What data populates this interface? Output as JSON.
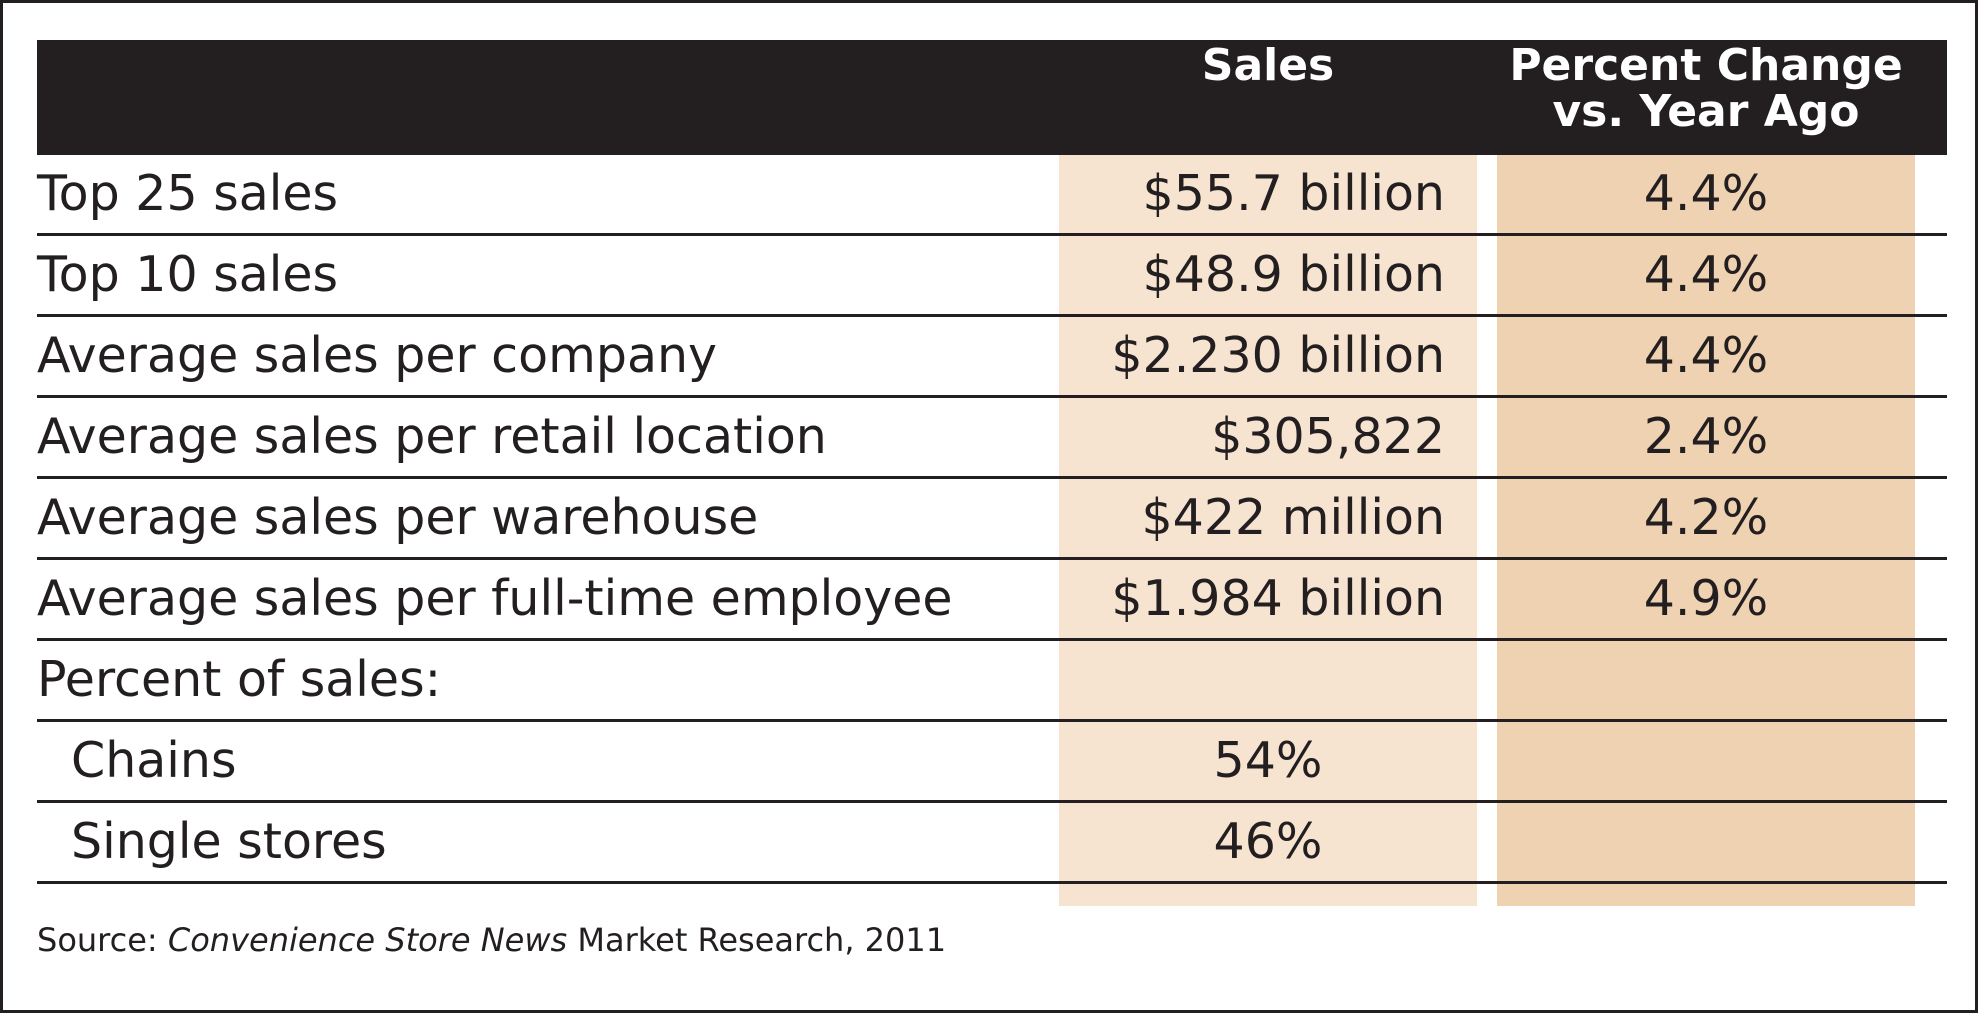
{
  "colors": {
    "header_bg": "#231f20",
    "header_text": "#ffffff",
    "sales_band": "#f6e4d1",
    "pct_band": "#efd2b1",
    "rule": "#231f20"
  },
  "header": {
    "sales": "Sales",
    "pct_change": "Percent Change\nvs. Year Ago"
  },
  "rows": [
    {
      "label": "Top 25 sales",
      "sales": "$55.7 billion",
      "pct": "4.4%"
    },
    {
      "label": "Top 10 sales",
      "sales": "$48.9 billion",
      "pct": "4.4%"
    },
    {
      "label": "Average sales per company",
      "sales": "$2.230 billion",
      "pct": "4.4%"
    },
    {
      "label": "Average sales per retail location",
      "sales": "$305,822",
      "pct": "2.4%"
    },
    {
      "label": "Average sales per warehouse",
      "sales": "$422 million",
      "pct": "4.2%"
    },
    {
      "label": "Average sales per full-time employee",
      "sales": "$1.984 billion",
      "pct": "4.9%"
    },
    {
      "label": "Percent of sales:",
      "sales": "",
      "pct": ""
    },
    {
      "label": "Chains",
      "sales": "54%",
      "pct": ""
    },
    {
      "label": "Single stores",
      "sales": "46%",
      "pct": ""
    }
  ],
  "source": {
    "prefix": "Source: ",
    "publication": "Convenience Store News",
    "suffix": " Market Research, 2011"
  },
  "chart_data": {
    "type": "table",
    "columns": [
      "",
      "Sales",
      "Percent Change vs. Year Ago"
    ],
    "rows": [
      [
        "Top 25 sales",
        "$55.7 billion",
        "4.4%"
      ],
      [
        "Top 10 sales",
        "$48.9 billion",
        "4.4%"
      ],
      [
        "Average sales per company",
        "$2.230 billion",
        "4.4%"
      ],
      [
        "Average sales per retail location",
        "$305,822",
        "2.4%"
      ],
      [
        "Average sales per warehouse",
        "$422 million",
        "4.2%"
      ],
      [
        "Average sales per full-time employee",
        "$1.984 billion",
        "4.9%"
      ],
      [
        "Percent of sales:",
        "",
        ""
      ],
      [
        "Chains",
        "54%",
        ""
      ],
      [
        "Single stores",
        "46%",
        ""
      ]
    ],
    "source": "Source: Convenience Store News Market Research, 2011"
  }
}
